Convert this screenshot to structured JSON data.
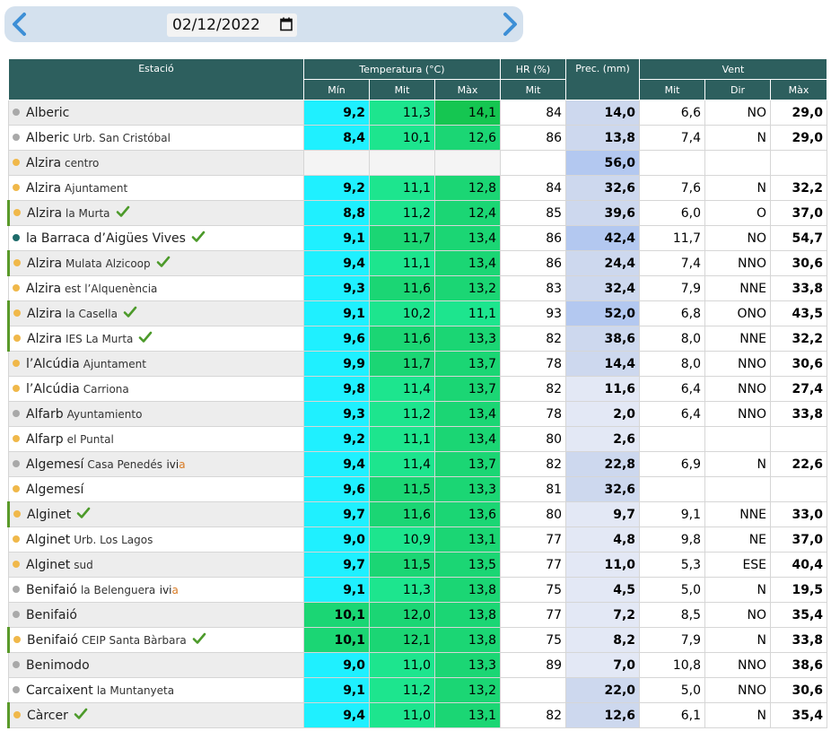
{
  "nav": {
    "date": "02/12/2022"
  },
  "colors": {
    "cyan": "#1ff0ff",
    "green_light": "#1de58e",
    "green_mid": "#1bd674",
    "green_dark": "#15c651",
    "prec_light": "#e3e8f5",
    "prec_mid": "#cdd8ee",
    "prec_strong": "#b3c8f0"
  },
  "headers": {
    "estacio": "Estació",
    "temperatura": "Temperatura (°C)",
    "hr": "HR (%)",
    "prec": "Prec. (mm)",
    "vent": "Vent",
    "min": "Mín",
    "mit": "Mit",
    "max": "Màx",
    "hr_mit": "Mit",
    "vent_mit": "Mit",
    "dir": "Dir",
    "vent_max": "Màx"
  },
  "rows": [
    {
      "name": "Alberic",
      "sub": "",
      "dot": "#a9a9a9",
      "check": false,
      "flag": false,
      "ivia": false,
      "min": "9,2",
      "mit": "11,3",
      "max": "14,1",
      "hr": "84",
      "prec": "14,0",
      "wmit": "6,6",
      "dir": "NO",
      "wmax": "29,0"
    },
    {
      "name": "Alberic",
      "sub": "Urb. San Cristóbal",
      "dot": "#a9a9a9",
      "check": false,
      "flag": false,
      "ivia": false,
      "min": "8,4",
      "mit": "10,1",
      "max": "12,6",
      "hr": "86",
      "prec": "13,8",
      "wmit": "7,4",
      "dir": "N",
      "wmax": "29,0"
    },
    {
      "name": "Alzira",
      "sub": "centro",
      "dot": "#f0b84a",
      "check": false,
      "flag": false,
      "ivia": false,
      "min": "",
      "mit": "",
      "max": "",
      "hr": "",
      "prec": "56,0",
      "wmit": "",
      "dir": "",
      "wmax": ""
    },
    {
      "name": "Alzira",
      "sub": "Ajuntament",
      "dot": "#f0b84a",
      "check": false,
      "flag": false,
      "ivia": false,
      "min": "9,2",
      "mit": "11,1",
      "max": "12,8",
      "hr": "84",
      "prec": "32,6",
      "wmit": "7,6",
      "dir": "N",
      "wmax": "32,2"
    },
    {
      "name": "Alzira",
      "sub": "la Murta",
      "dot": "#f0b84a",
      "check": true,
      "flag": true,
      "ivia": false,
      "min": "8,8",
      "mit": "11,2",
      "max": "12,4",
      "hr": "85",
      "prec": "39,6",
      "wmit": "6,0",
      "dir": "O",
      "wmax": "37,0"
    },
    {
      "name": "la Barraca d’Aigües Vives",
      "sub": "",
      "dot": "#1e6b6a",
      "check": true,
      "flag": false,
      "ivia": false,
      "min": "9,1",
      "mit": "11,7",
      "max": "13,4",
      "hr": "86",
      "prec": "42,4",
      "wmit": "11,7",
      "dir": "NO",
      "wmax": "54,7"
    },
    {
      "name": "Alzira",
      "sub": "Mulata Alzicoop",
      "dot": "#f0b84a",
      "check": true,
      "flag": true,
      "ivia": false,
      "min": "9,4",
      "mit": "11,1",
      "max": "13,4",
      "hr": "86",
      "prec": "24,4",
      "wmit": "7,4",
      "dir": "NNO",
      "wmax": "30,6"
    },
    {
      "name": "Alzira",
      "sub": "est l’Alquenència",
      "dot": "#f0b84a",
      "check": false,
      "flag": false,
      "ivia": false,
      "min": "9,3",
      "mit": "11,6",
      "max": "13,2",
      "hr": "83",
      "prec": "32,4",
      "wmit": "7,9",
      "dir": "NNE",
      "wmax": "33,8"
    },
    {
      "name": "Alzira",
      "sub": "la Casella",
      "dot": "#f0b84a",
      "check": true,
      "flag": true,
      "ivia": false,
      "min": "9,1",
      "mit": "10,2",
      "max": "11,1",
      "hr": "93",
      "prec": "52,0",
      "wmit": "6,8",
      "dir": "ONO",
      "wmax": "43,5"
    },
    {
      "name": "Alzira",
      "sub": "IES La Murta",
      "dot": "#f0b84a",
      "check": true,
      "flag": true,
      "ivia": false,
      "min": "9,6",
      "mit": "11,6",
      "max": "13,3",
      "hr": "82",
      "prec": "38,6",
      "wmit": "8,0",
      "dir": "NNE",
      "wmax": "32,2"
    },
    {
      "name": "l’Alcúdia",
      "sub": "Ajuntament",
      "dot": "#f0b84a",
      "check": false,
      "flag": false,
      "ivia": false,
      "min": "9,9",
      "mit": "11,7",
      "max": "13,7",
      "hr": "78",
      "prec": "14,4",
      "wmit": "8,0",
      "dir": "NNO",
      "wmax": "30,6"
    },
    {
      "name": "l’Alcúdia",
      "sub": "Carriona",
      "dot": "#f0b84a",
      "check": false,
      "flag": false,
      "ivia": false,
      "min": "9,8",
      "mit": "11,4",
      "max": "13,7",
      "hr": "82",
      "prec": "11,6",
      "wmit": "6,4",
      "dir": "NNO",
      "wmax": "27,4"
    },
    {
      "name": "Alfarb",
      "sub": "Ayuntamiento",
      "dot": "#a9a9a9",
      "check": false,
      "flag": false,
      "ivia": false,
      "min": "9,3",
      "mit": "11,2",
      "max": "13,4",
      "hr": "78",
      "prec": "2,0",
      "wmit": "6,4",
      "dir": "NNO",
      "wmax": "33,8"
    },
    {
      "name": "Alfarp",
      "sub": "el Puntal",
      "dot": "#f0b84a",
      "check": false,
      "flag": false,
      "ivia": false,
      "min": "9,2",
      "mit": "11,1",
      "max": "13,4",
      "hr": "80",
      "prec": "2,6",
      "wmit": "",
      "dir": "",
      "wmax": ""
    },
    {
      "name": "Algemesí",
      "sub": "Casa Penedés",
      "dot": "#a9a9a9",
      "check": false,
      "flag": false,
      "ivia": true,
      "min": "9,4",
      "mit": "11,4",
      "max": "13,7",
      "hr": "82",
      "prec": "22,8",
      "wmit": "6,9",
      "dir": "N",
      "wmax": "22,6"
    },
    {
      "name": "Algemesí",
      "sub": "",
      "dot": "#f0b84a",
      "check": false,
      "flag": false,
      "ivia": false,
      "min": "9,6",
      "mit": "11,5",
      "max": "13,3",
      "hr": "81",
      "prec": "32,6",
      "wmit": "",
      "dir": "",
      "wmax": ""
    },
    {
      "name": "Alginet",
      "sub": "",
      "dot": "#f0b84a",
      "check": true,
      "flag": true,
      "ivia": false,
      "min": "9,7",
      "mit": "11,6",
      "max": "13,6",
      "hr": "80",
      "prec": "9,7",
      "wmit": "9,1",
      "dir": "NNE",
      "wmax": "33,0"
    },
    {
      "name": "Alginet",
      "sub": "Urb. Los Lagos",
      "dot": "#f0b84a",
      "check": false,
      "flag": false,
      "ivia": false,
      "min": "9,0",
      "mit": "10,9",
      "max": "13,1",
      "hr": "77",
      "prec": "4,8",
      "wmit": "9,8",
      "dir": "NE",
      "wmax": "37,0"
    },
    {
      "name": "Alginet",
      "sub": "sud",
      "dot": "#f0b84a",
      "check": false,
      "flag": false,
      "ivia": false,
      "min": "9,7",
      "mit": "11,5",
      "max": "13,5",
      "hr": "77",
      "prec": "11,0",
      "wmit": "5,3",
      "dir": "ESE",
      "wmax": "40,4"
    },
    {
      "name": "Benifaió",
      "sub": "la Belenguera",
      "dot": "#a9a9a9",
      "check": false,
      "flag": false,
      "ivia": true,
      "min": "9,1",
      "mit": "11,3",
      "max": "13,8",
      "hr": "75",
      "prec": "4,5",
      "wmit": "5,0",
      "dir": "N",
      "wmax": "19,5"
    },
    {
      "name": "Benifaió",
      "sub": "",
      "dot": "#a9a9a9",
      "check": false,
      "flag": false,
      "ivia": false,
      "min": "10,1",
      "mit": "12,0",
      "max": "13,8",
      "hr": "77",
      "prec": "7,2",
      "wmit": "8,5",
      "dir": "NO",
      "wmax": "35,4"
    },
    {
      "name": "Benifaió",
      "sub": "CEIP Santa Bàrbara",
      "dot": "#f0b84a",
      "check": true,
      "flag": true,
      "ivia": false,
      "min": "10,1",
      "mit": "12,1",
      "max": "13,8",
      "hr": "75",
      "prec": "8,2",
      "wmit": "7,9",
      "dir": "N",
      "wmax": "33,8"
    },
    {
      "name": "Benimodo",
      "sub": "",
      "dot": "#a9a9a9",
      "check": false,
      "flag": false,
      "ivia": false,
      "min": "9,0",
      "mit": "11,0",
      "max": "13,3",
      "hr": "89",
      "prec": "7,0",
      "wmit": "10,8",
      "dir": "NNO",
      "wmax": "38,6"
    },
    {
      "name": "Carcaixent",
      "sub": "la Muntanyeta",
      "dot": "#a9a9a9",
      "check": false,
      "flag": false,
      "ivia": false,
      "min": "9,1",
      "mit": "11,2",
      "max": "13,2",
      "hr": "",
      "prec": "22,0",
      "wmit": "5,0",
      "dir": "NNO",
      "wmax": "30,6"
    },
    {
      "name": "Càrcer",
      "sub": "",
      "dot": "#f0b84a",
      "check": true,
      "flag": true,
      "ivia": false,
      "min": "9,4",
      "mit": "11,0",
      "max": "13,1",
      "hr": "82",
      "prec": "12,6",
      "wmit": "6,1",
      "dir": "N",
      "wmax": "35,4"
    }
  ],
  "ivia_label": {
    "prefix": "ivi",
    "suffix": "a"
  }
}
